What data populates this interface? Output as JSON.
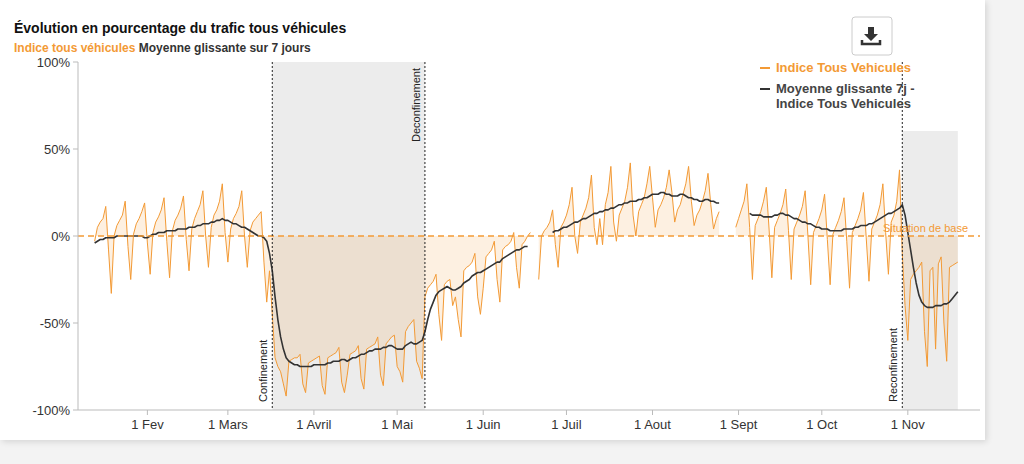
{
  "chart_data": {
    "type": "line",
    "title": "Évolution en pourcentage du trafic tous véhicules",
    "subtitle": [
      "Indice tous véhicules",
      "Moyenne glissante sur 7 jours"
    ],
    "x": [
      12,
      13,
      14,
      15,
      16,
      17,
      18,
      19,
      20,
      21,
      22,
      23,
      24,
      25,
      26,
      27,
      28,
      29,
      30,
      31,
      32,
      33,
      34,
      35,
      36,
      37,
      38,
      39,
      40,
      41,
      42,
      43,
      44,
      45,
      46,
      47,
      48,
      49,
      50,
      51,
      52,
      53,
      54,
      55,
      56,
      57,
      58,
      59,
      60,
      61,
      62,
      63,
      64,
      65,
      66,
      67,
      68,
      69,
      70,
      71,
      72,
      73,
      74,
      75,
      76,
      77,
      78,
      79,
      80,
      81,
      82,
      83,
      84,
      85,
      86,
      87,
      88,
      89,
      90,
      91,
      92,
      93,
      94,
      95,
      96,
      97,
      98,
      99,
      100,
      101,
      102,
      103,
      104,
      105,
      106,
      107,
      108,
      109,
      110,
      111,
      112,
      113,
      114,
      115,
      116,
      117,
      118,
      119,
      120,
      121,
      122,
      123,
      124,
      125,
      126,
      127,
      128,
      129,
      130,
      131,
      132,
      133,
      134,
      135,
      136,
      137,
      138,
      139,
      140,
      141,
      142,
      143,
      144,
      145,
      146,
      147,
      148,
      149,
      150,
      151,
      152,
      153,
      154,
      155,
      156,
      157,
      158,
      159,
      160,
      161,
      162,
      163,
      164,
      165,
      166,
      167,
      168,
      169,
      170,
      171,
      172,
      173,
      174,
      175,
      176,
      177,
      178,
      179,
      180,
      181,
      182,
      183,
      184,
      185,
      186,
      187,
      188,
      189,
      190,
      191,
      192,
      193,
      194,
      195,
      196,
      197,
      198,
      199,
      200,
      201,
      202,
      203,
      204,
      205,
      206,
      207,
      208,
      209,
      210,
      211,
      212,
      213,
      214,
      215,
      216,
      217,
      218,
      219,
      220,
      221,
      222,
      223,
      224,
      225,
      226,
      227,
      228,
      229,
      230,
      231,
      232,
      233,
      234,
      235,
      236,
      237,
      238,
      239,
      240,
      241,
      242,
      243,
      244,
      245,
      246,
      247,
      248,
      249,
      250,
      251,
      252,
      253,
      254,
      255,
      256,
      257,
      258,
      259,
      260,
      261,
      262,
      263,
      264,
      265,
      266,
      267,
      268,
      269,
      270,
      271,
      272,
      273,
      274,
      275,
      276,
      277,
      278,
      279,
      280,
      281,
      282,
      283,
      284,
      285,
      286,
      287,
      288,
      289,
      290,
      291,
      292,
      293,
      294,
      295,
      296,
      297,
      298,
      299,
      300,
      301,
      302,
      303,
      304,
      305,
      306,
      307,
      308,
      309,
      310,
      311,
      312,
      313,
      314,
      315,
      316,
      317,
      318,
      319,
      320,
      321,
      322,
      323
    ],
    "series": [
      {
        "name": "Indice Tous Vehicules",
        "color": "#f39a35",
        "type": "area",
        "values": [
          -3,
          5,
          8,
          10,
          17,
          -8,
          -33,
          0,
          6,
          9,
          12,
          20,
          -6,
          -25,
          1,
          7,
          10,
          14,
          19,
          -4,
          -22,
          2,
          8,
          11,
          15,
          22,
          -3,
          -24,
          3,
          9,
          12,
          16,
          23,
          -2,
          -20,
          4,
          10,
          14,
          18,
          26,
          0,
          -18,
          5,
          12,
          15,
          20,
          30,
          2,
          -15,
          4,
          10,
          13,
          17,
          26,
          0,
          -18,
          3,
          8,
          10,
          12,
          14,
          -15,
          -38,
          -20,
          -45,
          -70,
          -75,
          -78,
          -85,
          -92,
          -72,
          -71,
          -70,
          -70,
          -68,
          -85,
          -90,
          -73,
          -72,
          -71,
          -70,
          -69,
          -86,
          -91,
          -70,
          -69,
          -68,
          -67,
          -64,
          -84,
          -90,
          -80,
          -68,
          -67,
          -66,
          -63,
          -82,
          -88,
          -65,
          -64,
          -63,
          -62,
          -58,
          -80,
          -86,
          -62,
          -60,
          -58,
          -57,
          -75,
          -78,
          -84,
          -55,
          -52,
          -50,
          -48,
          -72,
          -76,
          -82,
          -35,
          -30,
          -28,
          -26,
          -22,
          -45,
          -60,
          -28,
          -26,
          -25,
          -40,
          -35,
          -48,
          -58,
          -20,
          -18,
          -17,
          -15,
          -10,
          -35,
          -45,
          -30,
          -12,
          -10,
          -8,
          -3,
          -25,
          -38,
          -8,
          -6,
          -5,
          -3,
          2,
          -18,
          -30,
          -5,
          -3,
          0,
          2,
          null,
          null,
          -25,
          0,
          3,
          5,
          8,
          15,
          -5,
          -18,
          5,
          8,
          12,
          18,
          28,
          0,
          -10,
          8,
          12,
          16,
          22,
          35,
          5,
          -5,
          10,
          -5,
          18,
          25,
          40,
          8,
          -3,
          12,
          16,
          20,
          28,
          42,
          12,
          0,
          14,
          18,
          22,
          30,
          40,
          22,
          5,
          15,
          18,
          22,
          28,
          38,
          25,
          8,
          15,
          18,
          24,
          30,
          40,
          20,
          6,
          12,
          15,
          20,
          26,
          36,
          18,
          4,
          10,
          14,
          null,
          null,
          null,
          null,
          null,
          5,
          10,
          15,
          20,
          30,
          5,
          -25,
          6,
          10,
          14,
          20,
          28,
          4,
          -24,
          5,
          9,
          13,
          18,
          27,
          3,
          -25,
          4,
          8,
          12,
          17,
          26,
          0,
          -28,
          2,
          6,
          10,
          15,
          24,
          -2,
          -28,
          1,
          5,
          9,
          14,
          22,
          -3,
          -30,
          2,
          6,
          10,
          15,
          25,
          -1,
          -26,
          4,
          8,
          12,
          18,
          30,
          2,
          -22,
          8,
          12,
          20,
          38,
          -10,
          -40,
          -60,
          -25,
          -22,
          -20,
          -18,
          -15,
          -55,
          -75,
          -20,
          -18,
          -65,
          -16,
          -12,
          -50,
          -72,
          -18,
          -17,
          -16,
          -15
        ]
      },
      {
        "name": "Moyenne glissante 7j - Indice Tous Vehicules",
        "color": "#333333",
        "type": "line",
        "values": [
          -4,
          -3,
          -2,
          -2,
          -1,
          -1,
          -1,
          -1,
          0,
          0,
          0,
          0,
          0,
          0,
          0,
          0,
          0,
          0,
          -1,
          -1,
          0,
          1,
          1,
          2,
          2,
          2,
          3,
          3,
          3,
          3,
          4,
          4,
          4,
          4,
          5,
          5,
          5,
          6,
          6,
          7,
          7,
          7,
          8,
          8,
          9,
          9,
          10,
          9,
          9,
          8,
          7,
          7,
          6,
          5,
          5,
          4,
          3,
          2,
          1,
          0,
          0,
          -1,
          -3,
          -10,
          -20,
          -35,
          -48,
          -58,
          -65,
          -70,
          -72,
          -73,
          -74,
          -74,
          -75,
          -75,
          -75,
          -75,
          -75,
          -74,
          -74,
          -74,
          -74,
          -74,
          -73,
          -73,
          -72,
          -72,
          -72,
          -71,
          -71,
          -72,
          -71,
          -70,
          -70,
          -69,
          -68,
          -68,
          -67,
          -66,
          -66,
          -65,
          -65,
          -65,
          -64,
          -64,
          -63,
          -63,
          -64,
          -65,
          -65,
          -65,
          -63,
          -62,
          -61,
          -62,
          -62,
          -61,
          -60,
          -55,
          -48,
          -42,
          -38,
          -34,
          -32,
          -31,
          -30,
          -29,
          -30,
          -31,
          -31,
          -30,
          -29,
          -27,
          -26,
          -25,
          -23,
          -22,
          -21,
          -21,
          -20,
          -19,
          -18,
          -17,
          -16,
          -15,
          -15,
          -13,
          -12,
          -11,
          -10,
          -9,
          -8,
          -8,
          -7,
          -6,
          -6,
          null,
          null,
          null,
          null,
          null,
          null,
          null,
          null,
          2,
          3,
          3,
          4,
          5,
          5,
          6,
          7,
          8,
          8,
          9,
          10,
          10,
          11,
          12,
          13,
          13,
          14,
          14,
          15,
          15,
          16,
          16,
          17,
          18,
          18,
          19,
          19,
          20,
          20,
          20,
          21,
          21,
          22,
          22,
          23,
          24,
          24,
          24,
          25,
          25,
          24,
          24,
          23,
          23,
          23,
          24,
          24,
          23,
          22,
          22,
          21,
          21,
          20,
          20,
          21,
          21,
          20,
          20,
          19,
          19,
          null,
          null,
          null,
          null,
          null,
          null,
          null,
          null,
          null,
          null,
          13,
          12,
          12,
          12,
          12,
          11,
          11,
          11,
          11,
          12,
          12,
          13,
          13,
          12,
          12,
          11,
          10,
          10,
          9,
          8,
          8,
          7,
          7,
          6,
          5,
          5,
          4,
          4,
          4,
          3,
          3,
          3,
          3,
          3,
          4,
          4,
          4,
          4,
          5,
          5,
          6,
          6,
          6,
          7,
          7,
          8,
          9,
          10,
          11,
          12,
          13,
          13,
          14,
          15,
          16,
          18,
          12,
          2,
          -8,
          -18,
          -27,
          -34,
          -38,
          -40,
          -41,
          -41,
          -41,
          -40,
          -40,
          -40,
          -39,
          -39,
          -38,
          -36,
          -34,
          -32
        ]
      }
    ],
    "xlim": [
      6,
      331
    ],
    "xticks": [
      {
        "value": 31,
        "label": "1 Fev"
      },
      {
        "value": 60,
        "label": "1 Mars"
      },
      {
        "value": 91,
        "label": "1 Avril"
      },
      {
        "value": 121,
        "label": "1 Mai"
      },
      {
        "value": 152,
        "label": "1 Juin"
      },
      {
        "value": 182,
        "label": "1 Juil"
      },
      {
        "value": 213,
        "label": "1 Aout"
      },
      {
        "value": 244,
        "label": "1 Sept"
      },
      {
        "value": 274,
        "label": "1 Oct"
      },
      {
        "value": 305,
        "label": "1 Nov"
      }
    ],
    "ylim": [
      -100,
      100
    ],
    "yticks": [
      {
        "value": -100,
        "label": "-100%"
      },
      {
        "value": -50,
        "label": "-50%"
      },
      {
        "value": 0,
        "label": "0%"
      },
      {
        "value": 50,
        "label": "50%"
      },
      {
        "value": 100,
        "label": "100%"
      }
    ],
    "annotations": [
      {
        "x": 76,
        "label": "Confinement"
      },
      {
        "x": 131,
        "label": "Deconfinement"
      },
      {
        "x": 303,
        "label": "Reconfinement"
      }
    ],
    "periods": [
      {
        "start": 76,
        "end": 131
      },
      {
        "start": 303,
        "end": 323
      }
    ],
    "baseline": {
      "value": 0,
      "label": "Situation de base",
      "line_style": "dashed"
    },
    "grid": false,
    "legend": "upper right"
  }
}
